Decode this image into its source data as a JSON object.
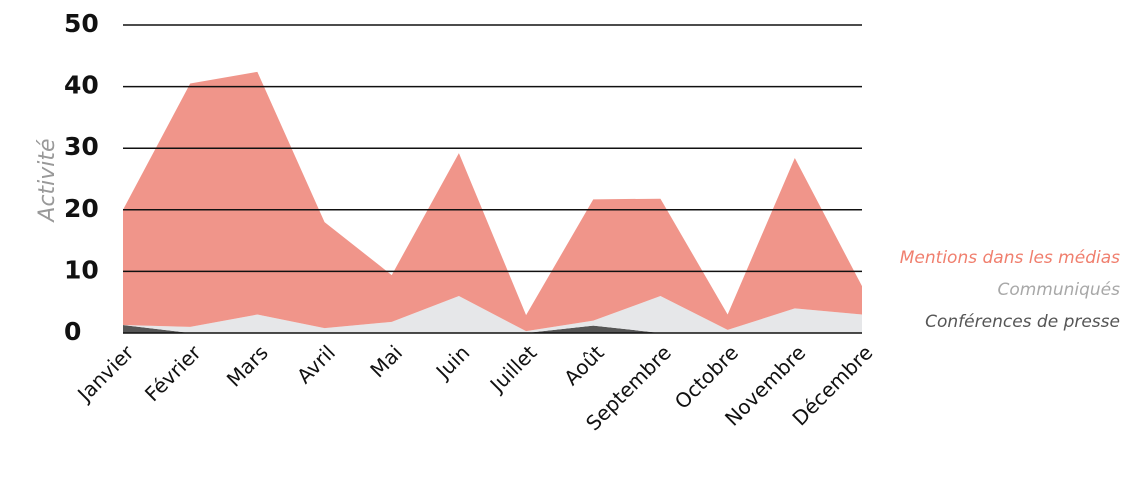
{
  "chart_data": {
    "type": "stacked-area",
    "y_label": "Activité",
    "categories": [
      "Janvier",
      "Février",
      "Mars",
      "Avril",
      "Mai",
      "Juin",
      "Juillet",
      "Août",
      "Septembre",
      "Octobre",
      "Novembre",
      "Décembre"
    ],
    "series": [
      {
        "name": "Mentions dans les médias",
        "color": "#f0958a",
        "legend_color": "#f07f6e",
        "values": [
          18.7,
          39.5,
          39.4,
          17.2,
          7.6,
          23.2,
          2.6,
          19.7,
          15.8,
          2.5,
          24.4,
          4.6
        ]
      },
      {
        "name": "Communiqués",
        "color": "#e6e7e9",
        "legend_color": "#a8a8a8",
        "values": [
          0,
          1,
          3,
          0.8,
          1.8,
          6,
          0.3,
          0.8,
          6,
          0.5,
          4,
          3
        ]
      },
      {
        "name": "Conférences de presse",
        "color": "#555555",
        "legend_color": "#555555",
        "values": [
          1.3,
          0,
          0,
          0,
          0,
          0,
          0,
          1.2,
          0,
          0,
          0,
          0
        ]
      }
    ],
    "ylim": [
      0,
      50
    ],
    "yticks": [
      0,
      10,
      20,
      30,
      40,
      50
    ],
    "grid": true,
    "legend": "right"
  }
}
